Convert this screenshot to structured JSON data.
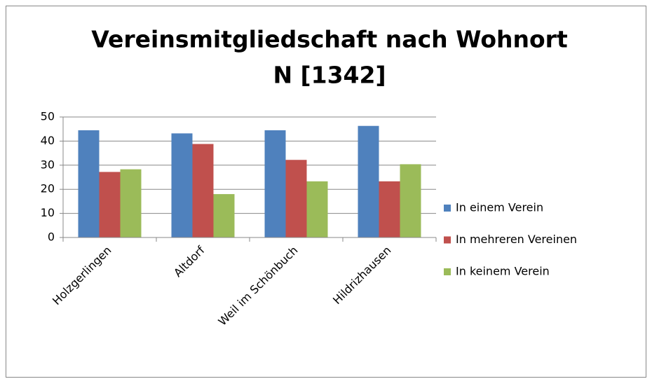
{
  "chart_data": {
    "type": "bar",
    "title": "Vereinsmitgliedschaft nach Wohnort",
    "subtitle": "N [1342]",
    "categories": [
      "Holzgerlingen",
      "Altdorf",
      "Weil im Schönbuch",
      "Hildrizhausen"
    ],
    "series": [
      {
        "name": "In einem Verein",
        "color": "#4f81bd",
        "values": [
          44.5,
          43.2,
          44.5,
          46.3
        ]
      },
      {
        "name": "In mehreren Vereinen",
        "color": "#c0504d",
        "values": [
          27.2,
          38.8,
          32.2,
          23.3
        ]
      },
      {
        "name": "In keinem Verein",
        "color": "#9bbb59",
        "values": [
          28.3,
          18.0,
          23.3,
          30.4
        ]
      }
    ],
    "ylim": [
      0,
      50
    ],
    "yticks": [
      0,
      10,
      20,
      30,
      40,
      50
    ],
    "grid": true,
    "legend": "right"
  }
}
